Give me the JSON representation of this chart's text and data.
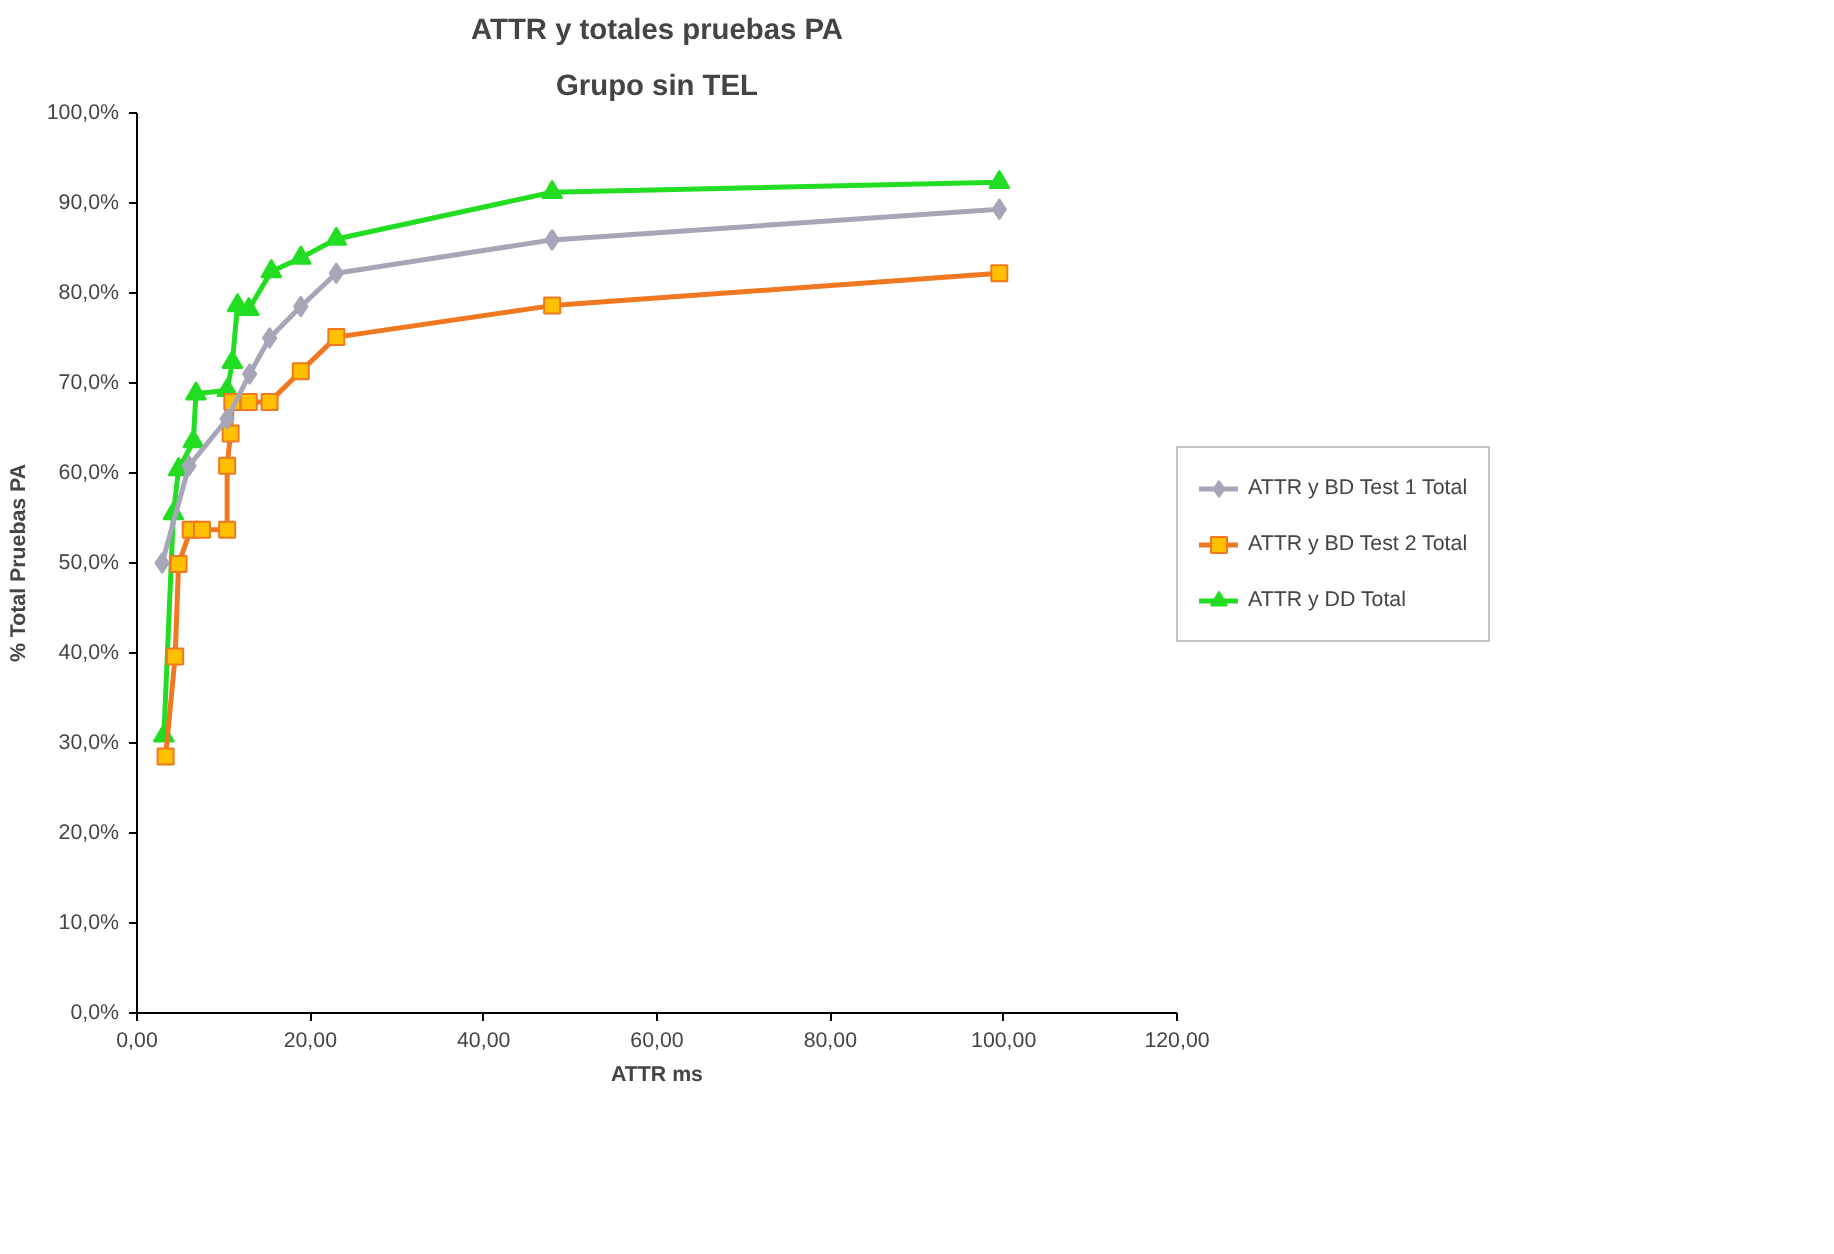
{
  "chart_data": {
    "type": "line",
    "title": "ATTR y totales pruebas PA",
    "subtitle": "Grupo sin TEL",
    "xlabel": "ATTR ms",
    "ylabel": "% Total Pruebas PA",
    "xlim": [
      0,
      120
    ],
    "xticks": [
      {
        "value": 0,
        "label": "0,00"
      },
      {
        "value": 20,
        "label": "20,00"
      },
      {
        "value": 40,
        "label": "40,00"
      },
      {
        "value": 60,
        "label": "60,00"
      },
      {
        "value": 80,
        "label": "80,00"
      },
      {
        "value": 100,
        "label": "100,00"
      },
      {
        "value": 120,
        "label": "120,00"
      }
    ],
    "ylim": [
      0,
      100
    ],
    "yticks": [
      {
        "value": 0,
        "label": "0,0%"
      },
      {
        "value": 10,
        "label": "10,0%"
      },
      {
        "value": 20,
        "label": "20,0%"
      },
      {
        "value": 30,
        "label": "30,0%"
      },
      {
        "value": 40,
        "label": "40,0%"
      },
      {
        "value": 50,
        "label": "50,0%"
      },
      {
        "value": 60,
        "label": "60,0%"
      },
      {
        "value": 70,
        "label": "70,0%"
      },
      {
        "value": 80,
        "label": "80,0%"
      },
      {
        "value": 90,
        "label": "90,0%"
      },
      {
        "value": 100,
        "label": "100,0%"
      }
    ],
    "grid": false,
    "legend": "right",
    "series": [
      {
        "name": "ATTR y BD Test 1 Total",
        "color": "#a6a6b8",
        "marker": "diamond",
        "x": [
          2.9,
          6.0,
          10.4,
          13.0,
          15.3,
          18.9,
          23.0,
          47.9,
          99.5
        ],
        "values": [
          50.0,
          60.8,
          66.0,
          71.0,
          75.0,
          78.5,
          82.2,
          85.9,
          89.3
        ]
      },
      {
        "name": "ATTR y BD Test 2 Total",
        "color": "#f07820",
        "marker": "square",
        "x": [
          3.3,
          4.4,
          4.8,
          6.2,
          7.5,
          10.4,
          10.4,
          10.8,
          11.0,
          12.9,
          15.3,
          18.9,
          23.0,
          47.9,
          99.5
        ],
        "values": [
          28.5,
          39.6,
          49.9,
          53.7,
          53.7,
          53.7,
          60.8,
          64.4,
          67.9,
          67.9,
          67.9,
          71.3,
          75.1,
          78.6,
          82.2
        ]
      },
      {
        "name": "ATTR y DD Total",
        "color": "#22dd22",
        "marker": "triangle",
        "x": [
          3.1,
          4.2,
          4.8,
          6.5,
          6.8,
          10.4,
          11.0,
          11.6,
          12.9,
          15.5,
          18.9,
          23.0,
          47.9,
          99.5
        ],
        "values": [
          30.8,
          55.5,
          60.4,
          63.5,
          68.8,
          69.2,
          72.3,
          78.6,
          78.2,
          82.4,
          83.9,
          86.0,
          91.2,
          92.3
        ]
      }
    ]
  }
}
